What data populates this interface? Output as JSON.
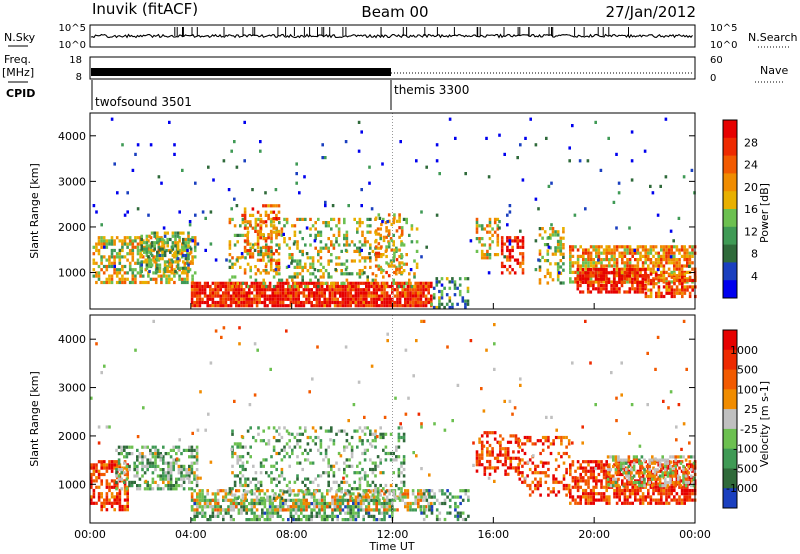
{
  "header": {
    "station": "Inuvik (fitACF)",
    "beam": "Beam 00",
    "date": "27/Jan/2012"
  },
  "top_strip": {
    "left_labels": [
      "N.Sky",
      "Freq.",
      "[MHz]",
      "CPID"
    ],
    "right_labels": [
      "N.Search",
      "Nave"
    ],
    "nsky_ticks": [
      "10^5",
      "10^0"
    ],
    "nsearch_ticks": [
      "10^5",
      "10^0"
    ],
    "freq_ticks": [
      "18",
      "8"
    ],
    "nave_ticks": [
      "60",
      "0"
    ],
    "cpid_entries": [
      {
        "name": "twofsound 3501",
        "start_hour": 0
      },
      {
        "name": "themis 3300",
        "start_hour": 12
      }
    ]
  },
  "chart_data": [
    {
      "type": "heatmap",
      "panel": "power",
      "xlabel": "",
      "ylabel": "Slant Range [km]",
      "x_unit": "hours UT",
      "xlim": [
        0,
        24
      ],
      "ylim": [
        200,
        4500
      ],
      "y_ticks": [
        1000,
        2000,
        3000,
        4000
      ],
      "colorbar": {
        "label": "Power [dB]",
        "ticks": [
          "28",
          "24",
          "20",
          "16",
          "12",
          "8",
          "4"
        ],
        "colors": [
          "#0000ee",
          "#1a3fbf",
          "#2f6a3a",
          "#3f9a55",
          "#6cc050",
          "#e8b000",
          "#f08c00",
          "#f25a00",
          "#ee2a00",
          "#e60000"
        ]
      },
      "scatter_regions": [
        {
          "x0": 0.1,
          "x1": 4.2,
          "y0": 800,
          "y1": 1800,
          "level": 0.55,
          "density": 0.55
        },
        {
          "x0": 2.0,
          "x1": 4.0,
          "y0": 1000,
          "y1": 1900,
          "level": 0.4,
          "density": 0.5
        },
        {
          "x0": 4.0,
          "x1": 13.5,
          "y0": 250,
          "y1": 800,
          "level": 0.9,
          "density": 0.85
        },
        {
          "x0": 5.5,
          "x1": 13.0,
          "y0": 700,
          "y1": 2200,
          "level": 0.5,
          "density": 0.25
        },
        {
          "x0": 6.0,
          "x1": 7.5,
          "y0": 1000,
          "y1": 2500,
          "level": 0.7,
          "density": 0.35
        },
        {
          "x0": 11.3,
          "x1": 12.4,
          "y0": 900,
          "y1": 2300,
          "level": 0.6,
          "density": 0.35
        },
        {
          "x0": 13.5,
          "x1": 15.0,
          "y0": 250,
          "y1": 900,
          "level": 0.3,
          "density": 0.35
        },
        {
          "x0": 15.3,
          "x1": 16.2,
          "y0": 1300,
          "y1": 2200,
          "level": 0.55,
          "density": 0.45
        },
        {
          "x0": 16.3,
          "x1": 17.2,
          "y0": 1000,
          "y1": 1800,
          "level": 0.9,
          "density": 0.55
        },
        {
          "x0": 17.8,
          "x1": 18.8,
          "y0": 800,
          "y1": 2000,
          "level": 0.5,
          "density": 0.35
        },
        {
          "x0": 19.0,
          "x1": 24.0,
          "y0": 800,
          "y1": 1600,
          "level": 0.65,
          "density": 0.7
        },
        {
          "x0": 19.3,
          "x1": 22.0,
          "y0": 600,
          "y1": 1100,
          "level": 0.95,
          "density": 0.75
        },
        {
          "x0": 22.0,
          "x1": 24.0,
          "y0": 500,
          "y1": 1000,
          "level": 0.8,
          "density": 0.6
        },
        {
          "x0": 0.0,
          "x1": 24.0,
          "y0": 1000,
          "y1": 4400,
          "level": 0.15,
          "density": 0.015
        }
      ]
    },
    {
      "type": "heatmap",
      "panel": "velocity",
      "xlabel": "Time UT",
      "ylabel": "Slant Range [km]",
      "x_unit": "hours UT",
      "xlim": [
        0,
        24
      ],
      "ylim": [
        200,
        4500
      ],
      "y_ticks": [
        1000,
        2000,
        3000,
        4000
      ],
      "x_tick_labels": [
        "00:00",
        "04:00",
        "08:00",
        "12:00",
        "16:00",
        "20:00",
        "00:00"
      ],
      "colorbar": {
        "label": "Velocity [m s-1]",
        "ticks": [
          "1000",
          "500",
          "100",
          "25",
          "-25",
          "-100",
          "-500",
          "-1000"
        ],
        "colors": [
          "#1a3fbf",
          "#2f6a3a",
          "#3f9a55",
          "#6cc050",
          "#c0c0c0",
          "#f08c00",
          "#f25a00",
          "#ee2a00",
          "#e60000"
        ]
      },
      "scatter_regions": [
        {
          "x0": 0.0,
          "x1": 1.5,
          "y0": 500,
          "y1": 1500,
          "level": 0.8,
          "density": 0.6
        },
        {
          "x0": 1.0,
          "x1": 4.2,
          "y0": 900,
          "y1": 1800,
          "level": 0.35,
          "density": 0.55
        },
        {
          "x0": 4.0,
          "x1": 12.0,
          "y0": 250,
          "y1": 700,
          "level": 0.3,
          "density": 0.6
        },
        {
          "x0": 4.0,
          "x1": 13.5,
          "y0": 500,
          "y1": 900,
          "level": 0.5,
          "density": 0.5
        },
        {
          "x0": 5.5,
          "x1": 12.5,
          "y0": 700,
          "y1": 2200,
          "level": 0.35,
          "density": 0.25
        },
        {
          "x0": 13.0,
          "x1": 15.0,
          "y0": 250,
          "y1": 900,
          "level": 0.3,
          "density": 0.35
        },
        {
          "x0": 15.3,
          "x1": 17.0,
          "y0": 1200,
          "y1": 2100,
          "level": 0.8,
          "density": 0.45
        },
        {
          "x0": 17.0,
          "x1": 19.0,
          "y0": 800,
          "y1": 2000,
          "level": 0.8,
          "density": 0.35
        },
        {
          "x0": 19.0,
          "x1": 24.0,
          "y0": 600,
          "y1": 1500,
          "level": 0.85,
          "density": 0.65
        },
        {
          "x0": 20.5,
          "x1": 24.0,
          "y0": 1000,
          "y1": 1600,
          "level": 0.5,
          "density": 0.6
        },
        {
          "x0": 0.0,
          "x1": 24.0,
          "y0": 1000,
          "y1": 4400,
          "level": 0.6,
          "density": 0.012
        }
      ]
    }
  ]
}
